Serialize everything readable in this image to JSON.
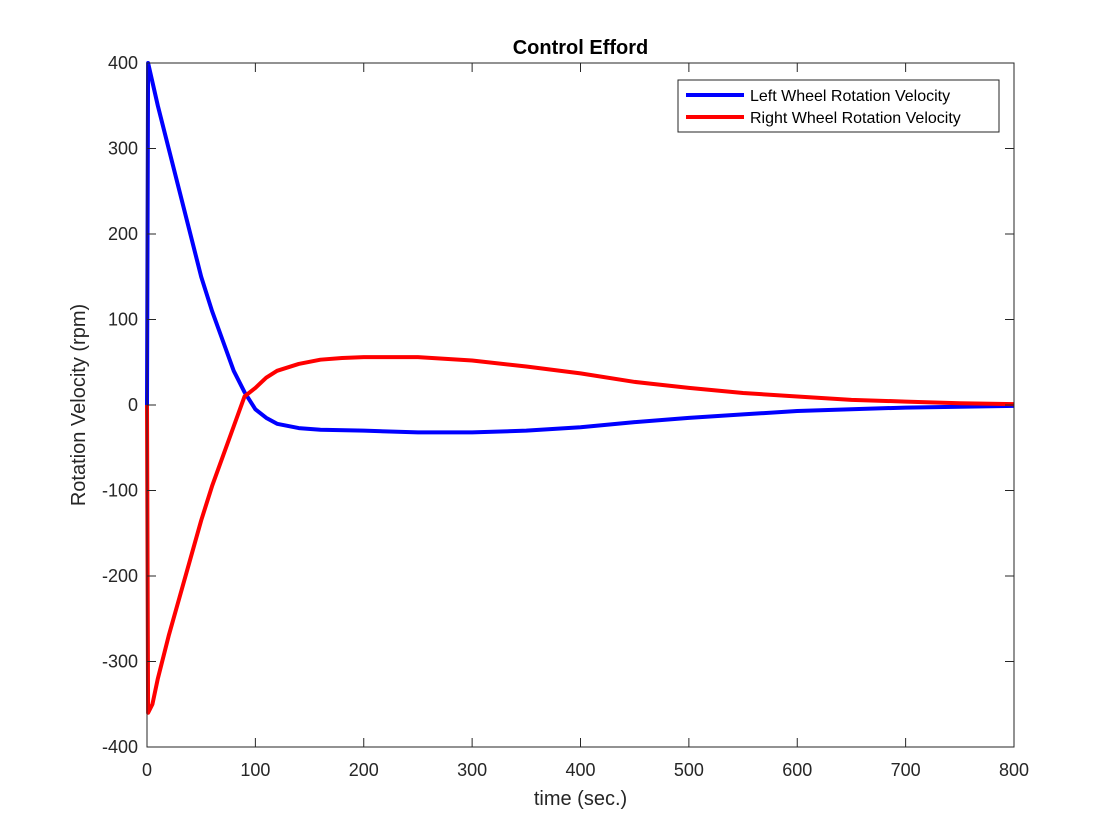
{
  "chart_data": {
    "type": "line",
    "title": "Control Efford",
    "xlabel": "time (sec.)",
    "ylabel": "Rotation Velocity (rpm)",
    "xlim": [
      0,
      800
    ],
    "ylim": [
      -400,
      400
    ],
    "xticks": [
      0,
      100,
      200,
      300,
      400,
      500,
      600,
      700,
      800
    ],
    "yticks": [
      -400,
      -300,
      -200,
      -100,
      0,
      100,
      200,
      300,
      400
    ],
    "grid": false,
    "legend_position": "top-right",
    "series": [
      {
        "name": "Left Wheel Rotation Velocity",
        "color": "#0000ff",
        "points": [
          [
            0,
            0
          ],
          [
            1,
            400
          ],
          [
            10,
            350
          ],
          [
            20,
            300
          ],
          [
            30,
            250
          ],
          [
            40,
            200
          ],
          [
            50,
            150
          ],
          [
            60,
            110
          ],
          [
            70,
            75
          ],
          [
            80,
            40
          ],
          [
            90,
            15
          ],
          [
            100,
            -5
          ],
          [
            110,
            -15
          ],
          [
            120,
            -22
          ],
          [
            140,
            -27
          ],
          [
            160,
            -29
          ],
          [
            200,
            -30
          ],
          [
            250,
            -32
          ],
          [
            300,
            -32
          ],
          [
            350,
            -30
          ],
          [
            400,
            -26
          ],
          [
            450,
            -20
          ],
          [
            500,
            -15
          ],
          [
            550,
            -11
          ],
          [
            600,
            -7
          ],
          [
            650,
            -5
          ],
          [
            700,
            -3
          ],
          [
            750,
            -2
          ],
          [
            800,
            -1
          ]
        ]
      },
      {
        "name": "Right Wheel Rotation Velocity",
        "color": "#ff0000",
        "points": [
          [
            0,
            0
          ],
          [
            1,
            -360
          ],
          [
            5,
            -350
          ],
          [
            10,
            -320
          ],
          [
            20,
            -270
          ],
          [
            30,
            -225
          ],
          [
            40,
            -180
          ],
          [
            50,
            -135
          ],
          [
            60,
            -95
          ],
          [
            70,
            -60
          ],
          [
            80,
            -25
          ],
          [
            90,
            10
          ],
          [
            100,
            20
          ],
          [
            110,
            32
          ],
          [
            120,
            40
          ],
          [
            140,
            48
          ],
          [
            160,
            53
          ],
          [
            180,
            55
          ],
          [
            200,
            56
          ],
          [
            250,
            56
          ],
          [
            300,
            52
          ],
          [
            350,
            45
          ],
          [
            400,
            37
          ],
          [
            450,
            27
          ],
          [
            500,
            20
          ],
          [
            550,
            14
          ],
          [
            600,
            10
          ],
          [
            650,
            6
          ],
          [
            700,
            4
          ],
          [
            750,
            2
          ],
          [
            800,
            1
          ]
        ]
      }
    ]
  }
}
